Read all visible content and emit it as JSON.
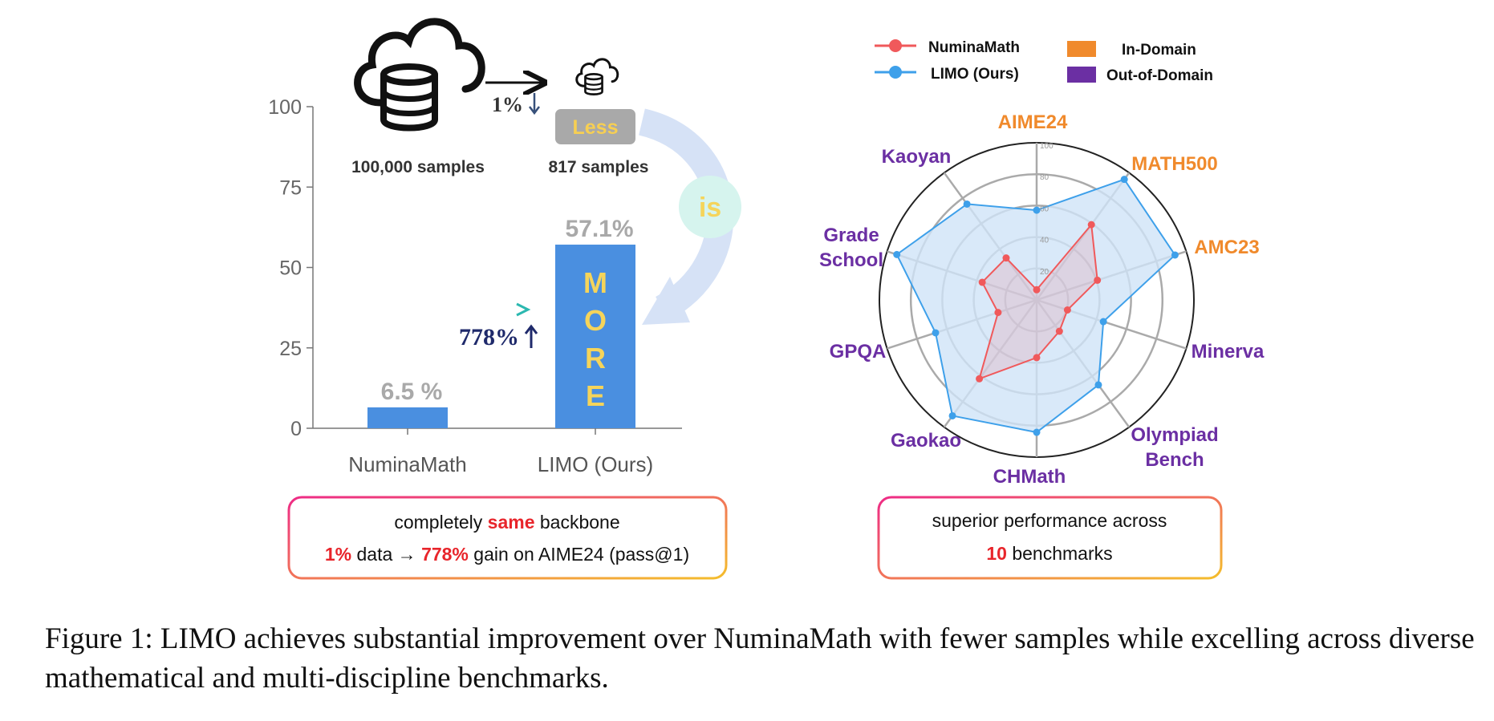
{
  "colors": {
    "bar": "#4a8fe0",
    "bar_value_label": "#a9a9a9",
    "numina": "#f0595b",
    "limo": "#3ea0ea",
    "limo_fill": "#cfe4f8",
    "in_domain": "#f08a2c",
    "out_domain": "#6b2fa3",
    "more_text": "#f5d45a",
    "less_badge": "#a9a9a9",
    "less_text": "#f7cf52",
    "highlight_red": "#e8252b",
    "box_grad_start": "#ee2b86",
    "box_grad_end": "#f4bd2c"
  },
  "icons": {
    "large_cloud": "cloud-database-icon",
    "small_cloud": "cloud-database-icon"
  },
  "left": {
    "big_data_label": "100,000 samples",
    "small_data_label": "817 samples",
    "one_percent": "1%",
    "less_badge": "Less",
    "is_label": "is",
    "more_letters": [
      "M",
      "O",
      "R",
      "E"
    ],
    "gain_label": "778%",
    "box": {
      "line1_pre": "completely ",
      "line1_hl": "same",
      "line1_post": " backbone",
      "line2_hl1": "1%",
      "line2_mid": " data → ",
      "line2_hl2": "778%",
      "line2_post": " gain on AIME24 (pass@1)"
    }
  },
  "right": {
    "legend_series": [
      "NuminaMath",
      "LIMO (Ours)"
    ],
    "legend_domains": [
      "In-Domain",
      "Out-of-Domain"
    ],
    "box": {
      "line1": "superior performance across",
      "line2_hl": "10",
      "line2_post": " benchmarks"
    }
  },
  "chart_data": [
    {
      "type": "bar",
      "categories": [
        "NuminaMath",
        "LIMO (Ours)"
      ],
      "values": [
        6.5,
        57.1
      ],
      "value_labels": [
        "6.5 %",
        "57.1%"
      ],
      "ylim": [
        0,
        100
      ],
      "yticks": [
        0,
        25,
        50,
        75,
        100
      ],
      "grid": false
    },
    {
      "type": "radar",
      "axes": [
        {
          "label": "AIME24",
          "domain": "in"
        },
        {
          "label": "MATH500",
          "domain": "in"
        },
        {
          "label": "AMC23",
          "domain": "in"
        },
        {
          "label": "Minerva",
          "domain": "out"
        },
        {
          "label": "Olympiad Bench",
          "domain": "out"
        },
        {
          "label": "CHMath",
          "domain": "out"
        },
        {
          "label": "Gaokao",
          "domain": "out"
        },
        {
          "label": "GPQA",
          "domain": "out"
        },
        {
          "label": "Grade School",
          "domain": "out"
        },
        {
          "label": "Kaoyan",
          "domain": "out"
        }
      ],
      "rlim": [
        0,
        100
      ],
      "rticks": [
        20,
        40,
        60,
        80,
        100
      ],
      "series": [
        {
          "name": "NuminaMath",
          "values": [
            6.5,
            59.2,
            40.6,
            20.6,
            24.6,
            36.7,
            62.0,
            25.8,
            36.4,
            33.0
          ]
        },
        {
          "name": "LIMO (Ours)",
          "values": [
            57.1,
            94.8,
            92.5,
            44.6,
            66.8,
            84.2,
            91.1,
            67.6,
            93.5,
            75.4
          ]
        }
      ],
      "legend": "top"
    }
  ],
  "caption": "Figure 1: LIMO achieves substantial improvement over NuminaMath with fewer samples while excelling across diverse mathematical and multi-discipline benchmarks."
}
